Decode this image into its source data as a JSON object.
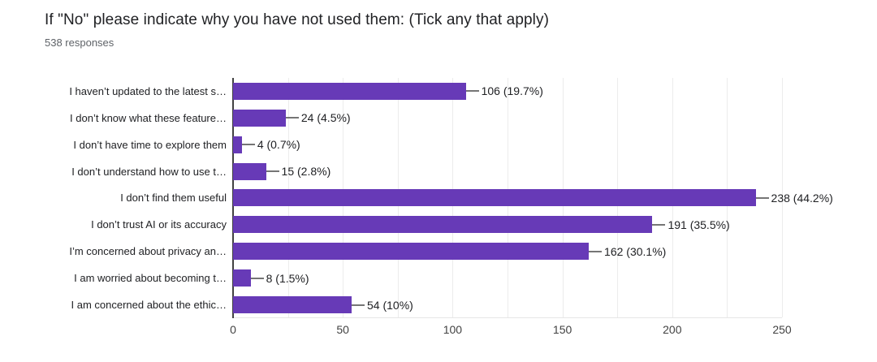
{
  "header": {
    "title": "If \"No\" please indicate why you have not used them: (Tick any that apply)",
    "subtitle": "538 responses"
  },
  "chart_data": {
    "type": "bar",
    "orientation": "horizontal",
    "title": "If \"No\" please indicate why you have not used them: (Tick any that apply)",
    "subtitle": "538 responses",
    "categories": [
      "I haven’t updated to the latest s…",
      "I don’t know what these feature…",
      "I don’t have time to explore them",
      "I don’t understand how to use t…",
      "I don’t find them useful",
      "I don’t trust AI or its accuracy",
      "I’m concerned about privacy an…",
      "I am worried about becoming t…",
      "I am concerned about the ethic…"
    ],
    "values": [
      106,
      24,
      4,
      15,
      238,
      191,
      162,
      8,
      54
    ],
    "value_labels": [
      "106 (19.7%)",
      "24 (4.5%)",
      "4 (0.7%)",
      "15 (2.8%)",
      "238 (44.2%)",
      "191 (35.5%)",
      "162 (30.1%)",
      "8 (1.5%)",
      "54 (10%)"
    ],
    "xlabel": "",
    "ylabel": "",
    "xlim": [
      0,
      250
    ],
    "x_ticks": [
      0,
      50,
      100,
      150,
      200,
      250
    ],
    "gridline_step": 25,
    "grid": true,
    "legend": "none",
    "bar_color": "#673ab7",
    "colors": {
      "bar": "#673ab7",
      "grid": "#ececec",
      "axis": "#424242",
      "connector": "#757575",
      "text": "#202124",
      "subtitle": "#5f6368",
      "tick_text": "#424242"
    }
  }
}
